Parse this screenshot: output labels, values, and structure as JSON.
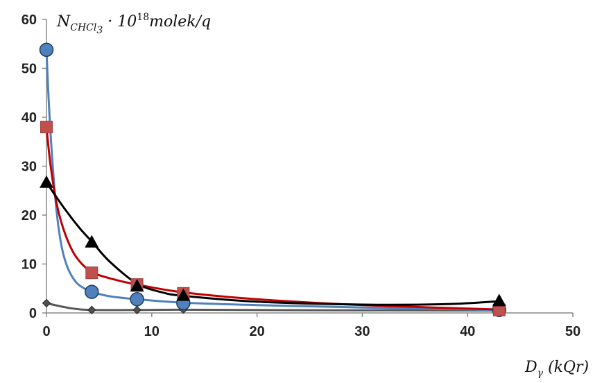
{
  "chart_data": {
    "type": "scatter",
    "ylabel": {
      "main": "N",
      "subscript": "CHCl",
      "sub_subscript": "3",
      "middle": " · 10",
      "superscript": "18",
      "suffix": "molek/q"
    },
    "xlabel": {
      "main": "D",
      "subscript": "γ",
      "suffix": " (kQr)"
    },
    "xlim": [
      0,
      50
    ],
    "ylim": [
      0,
      60
    ],
    "xticks": [
      0,
      10,
      20,
      30,
      40,
      50
    ],
    "yticks": [
      0,
      10,
      20,
      30,
      40,
      50,
      60
    ],
    "grid": false,
    "legend": "none",
    "series": [
      {
        "marker": "circle",
        "color": "#4f81bd",
        "line_color": "#4f81bd",
        "x": [
          0,
          4.3,
          8.6,
          13,
          43
        ],
        "y": [
          53.8,
          4.3,
          2.8,
          2.0,
          0.6
        ],
        "curve": [
          [
            0,
            53.8
          ],
          [
            0.2,
            44
          ],
          [
            0.5,
            33
          ],
          [
            0.9,
            22
          ],
          [
            1.4,
            14
          ],
          [
            2.0,
            9.3
          ],
          [
            2.8,
            6.3
          ],
          [
            3.6,
            5
          ],
          [
            4.3,
            4.3
          ],
          [
            6,
            3.4
          ],
          [
            8.6,
            2.8
          ],
          [
            13,
            2.1
          ],
          [
            20,
            1.6
          ],
          [
            30,
            1.1
          ],
          [
            43,
            0.6
          ]
        ]
      },
      {
        "marker": "square",
        "color": "#c0504d",
        "line_color": "#c00000",
        "x": [
          0,
          4.3,
          8.6,
          13,
          43
        ],
        "y": [
          38,
          8.2,
          5.8,
          4.0,
          0.6
        ],
        "curve": [
          [
            0,
            38
          ],
          [
            0.4,
            30
          ],
          [
            1.0,
            22
          ],
          [
            1.8,
            16
          ],
          [
            2.8,
            11.5
          ],
          [
            4.3,
            8.4
          ],
          [
            6.5,
            6.8
          ],
          [
            8.6,
            5.8
          ],
          [
            13,
            4.2
          ],
          [
            20,
            2.8
          ],
          [
            30,
            1.6
          ],
          [
            43,
            0.7
          ]
        ]
      },
      {
        "marker": "triangle",
        "color": "#000000",
        "line_color": "#000000",
        "x": [
          0,
          4.3,
          8.6,
          13,
          43
        ],
        "y": [
          26.7,
          14.5,
          5.5,
          3.6,
          2.5
        ],
        "curve": [
          [
            0,
            26.7
          ],
          [
            1,
            23.5
          ],
          [
            2,
            20.5
          ],
          [
            3.2,
            17.2
          ],
          [
            4.3,
            14.6
          ],
          [
            6,
            10.5
          ],
          [
            8.6,
            6.0
          ],
          [
            11,
            4.2
          ],
          [
            13,
            3.5
          ],
          [
            20,
            2.3
          ],
          [
            30,
            1.7
          ],
          [
            38,
            1.8
          ],
          [
            43,
            2.4
          ]
        ]
      },
      {
        "marker": "diamond",
        "color": "#4f4f4f",
        "line_color": "#595959",
        "x": [
          0,
          4.3,
          8.6,
          13,
          43
        ],
        "y": [
          2.0,
          0.6,
          0.6,
          0.7,
          0.5
        ],
        "curve": [
          [
            0,
            2.0
          ],
          [
            1,
            1.5
          ],
          [
            2.5,
            0.9
          ],
          [
            4.3,
            0.6
          ],
          [
            8.6,
            0.6
          ],
          [
            13,
            0.65
          ],
          [
            25,
            0.55
          ],
          [
            43,
            0.5
          ]
        ]
      }
    ]
  }
}
